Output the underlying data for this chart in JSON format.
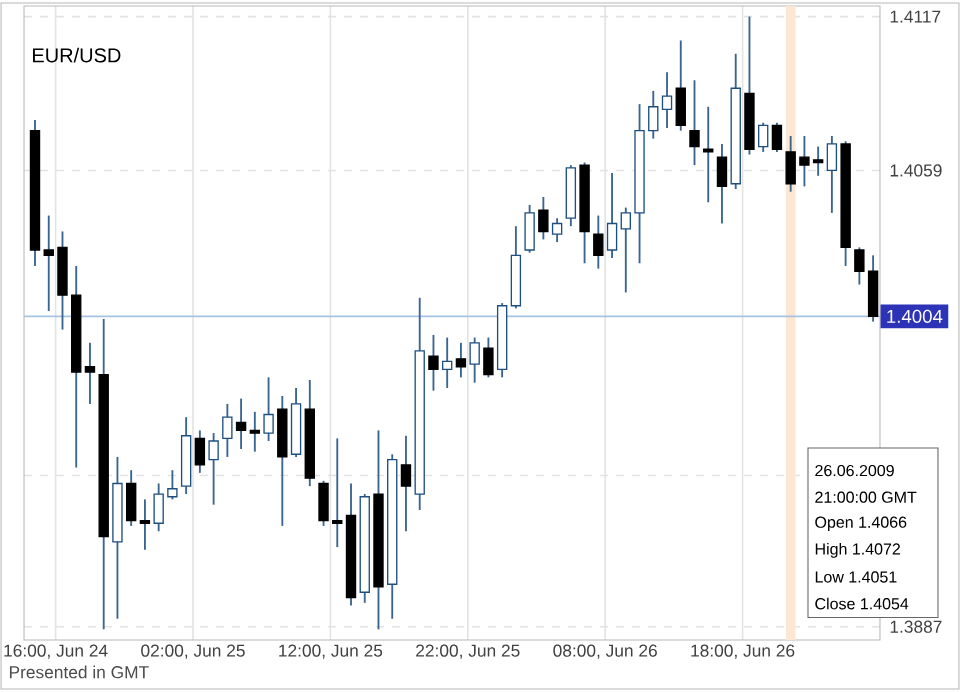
{
  "chart_data": {
    "type": "candlestick",
    "title": "EUR/USD",
    "x": [
      "2009-06-24T14:30",
      "2009-06-24T15:30",
      "2009-06-24T16:30",
      "2009-06-24T17:30",
      "2009-06-24T18:30",
      "2009-06-24T19:30",
      "2009-06-24T20:30",
      "2009-06-24T21:30",
      "2009-06-24T22:30",
      "2009-06-24T23:30",
      "2009-06-25T00:30",
      "2009-06-25T01:30",
      "2009-06-25T02:30",
      "2009-06-25T03:30",
      "2009-06-25T04:30",
      "2009-06-25T05:30",
      "2009-06-25T06:30",
      "2009-06-25T07:30",
      "2009-06-25T08:30",
      "2009-06-25T09:30",
      "2009-06-25T10:30",
      "2009-06-25T11:30",
      "2009-06-25T12:30",
      "2009-06-25T13:30",
      "2009-06-25T14:30",
      "2009-06-25T15:30",
      "2009-06-25T16:30",
      "2009-06-25T17:30",
      "2009-06-25T18:30",
      "2009-06-25T19:30",
      "2009-06-25T20:30",
      "2009-06-25T21:30",
      "2009-06-25T22:30",
      "2009-06-25T23:30",
      "2009-06-26T00:30",
      "2009-06-26T01:30",
      "2009-06-26T02:30",
      "2009-06-26T03:30",
      "2009-06-26T04:30",
      "2009-06-26T05:30",
      "2009-06-26T06:30",
      "2009-06-26T07:30",
      "2009-06-26T08:30",
      "2009-06-26T09:30",
      "2009-06-26T10:30",
      "2009-06-26T11:30",
      "2009-06-26T12:30",
      "2009-06-26T13:30",
      "2009-06-26T14:30",
      "2009-06-26T15:30",
      "2009-06-26T16:30",
      "2009-06-26T17:30",
      "2009-06-26T18:30",
      "2009-06-26T19:30",
      "2009-06-26T20:30",
      "2009-06-26T21:30",
      "2009-06-26T22:30",
      "2009-06-26T23:30",
      "2009-06-27T00:30",
      "2009-06-27T01:30",
      "2009-06-27T02:30",
      "2009-06-27T03:30"
    ],
    "ohlc": [
      [
        1.4074,
        1.4078,
        1.4023,
        1.4029
      ],
      [
        1.4029,
        1.4042,
        1.4006,
        1.4027
      ],
      [
        1.403,
        1.4036,
        1.3999,
        1.4012
      ],
      [
        1.4012,
        1.4023,
        1.3947,
        1.3983
      ],
      [
        1.3985,
        1.3994,
        1.3971,
        1.3983
      ],
      [
        1.3982,
        1.4003,
        1.3886,
        1.3921
      ],
      [
        1.3919,
        1.3951,
        1.389,
        1.3941
      ],
      [
        1.3941,
        1.3946,
        1.3925,
        1.3927
      ],
      [
        1.3927,
        1.3935,
        1.3916,
        1.3926
      ],
      [
        1.3926,
        1.3941,
        1.3923,
        1.3937
      ],
      [
        1.3936,
        1.3946,
        1.3935,
        1.3939
      ],
      [
        1.394,
        1.3966,
        1.3937,
        1.3959
      ],
      [
        1.3958,
        1.3961,
        1.3945,
        1.3948
      ],
      [
        1.395,
        1.396,
        1.3933,
        1.3957
      ],
      [
        1.3958,
        1.3971,
        1.3951,
        1.3966
      ],
      [
        1.3964,
        1.3973,
        1.3954,
        1.3961
      ],
      [
        1.3961,
        1.3968,
        1.3953,
        1.396
      ],
      [
        1.396,
        1.3981,
        1.3957,
        1.3967
      ],
      [
        1.3969,
        1.3974,
        1.3925,
        1.3951
      ],
      [
        1.3952,
        1.3977,
        1.3951,
        1.3971
      ],
      [
        1.3969,
        1.398,
        1.394,
        1.3943
      ],
      [
        1.3941,
        1.3942,
        1.3925,
        1.3927
      ],
      [
        1.3927,
        1.3958,
        1.3917,
        1.3926
      ],
      [
        1.3929,
        1.3941,
        1.3895,
        1.3898
      ],
      [
        1.39,
        1.3937,
        1.3896,
        1.3936
      ],
      [
        1.3937,
        1.3961,
        1.3886,
        1.3902
      ],
      [
        1.3903,
        1.3952,
        1.389,
        1.395
      ],
      [
        1.3948,
        1.3959,
        1.3923,
        1.394
      ],
      [
        1.3937,
        1.4011,
        1.3931,
        1.3991
      ],
      [
        1.3989,
        1.3997,
        1.3976,
        1.3984
      ],
      [
        1.3984,
        1.3996,
        1.3977,
        1.3987
      ],
      [
        1.3988,
        1.3994,
        1.3981,
        1.3985
      ],
      [
        1.3986,
        1.3996,
        1.3979,
        1.3994
      ],
      [
        1.3992,
        1.3996,
        1.3981,
        1.3982
      ],
      [
        1.3984,
        1.4009,
        1.3981,
        1.4008
      ],
      [
        1.4008,
        1.4038,
        1.4007,
        1.4027
      ],
      [
        1.4029,
        1.4046,
        1.4028,
        1.4043
      ],
      [
        1.4044,
        1.4049,
        1.4033,
        1.4036
      ],
      [
        1.4035,
        1.4041,
        1.4032,
        1.4039
      ],
      [
        1.4041,
        1.4061,
        1.4038,
        1.406
      ],
      [
        1.4061,
        1.4062,
        1.4024,
        1.4036
      ],
      [
        1.4035,
        1.4042,
        1.4022,
        1.4027
      ],
      [
        1.4029,
        1.4058,
        1.4026,
        1.4039
      ],
      [
        1.4037,
        1.4045,
        1.4013,
        1.4043
      ],
      [
        1.4043,
        1.4084,
        1.4024,
        1.4074
      ],
      [
        1.4074,
        1.4089,
        1.4071,
        1.4083
      ],
      [
        1.4082,
        1.4096,
        1.4075,
        1.4087
      ],
      [
        1.409,
        1.4108,
        1.4074,
        1.4076
      ],
      [
        1.4074,
        1.4093,
        1.4061,
        1.4068
      ],
      [
        1.4067,
        1.4083,
        1.4047,
        1.4066
      ],
      [
        1.4064,
        1.4069,
        1.4039,
        1.4053
      ],
      [
        1.4054,
        1.4103,
        1.4052,
        1.409
      ],
      [
        1.4088,
        1.4117,
        1.4065,
        1.4067
      ],
      [
        1.4068,
        1.4077,
        1.4066,
        1.4076
      ],
      [
        1.4076,
        1.4077,
        1.4066,
        1.4067
      ],
      [
        1.4066,
        1.4072,
        1.4051,
        1.4054
      ],
      [
        1.4064,
        1.4072,
        1.4053,
        1.4061
      ],
      [
        1.4063,
        1.4068,
        1.4057,
        1.4062
      ],
      [
        1.4059,
        1.4072,
        1.4043,
        1.4069
      ],
      [
        1.4069,
        1.407,
        1.4023,
        1.403
      ],
      [
        1.4029,
        1.403,
        1.4016,
        1.4021
      ],
      [
        1.4021,
        1.4027,
        1.4002,
        1.4004
      ]
    ],
    "xlim": [
      "2009-06-24T13:42",
      "2009-06-27T04:00"
    ],
    "ylim": [
      1.3882,
      1.4121
    ],
    "xticks": [
      {
        "value": "2009-06-24T16:00",
        "label": "16:00, Jun 24"
      },
      {
        "value": "2009-06-25T02:00",
        "label": "02:00, Jun 25"
      },
      {
        "value": "2009-06-25T12:00",
        "label": "12:00, Jun 25"
      },
      {
        "value": "2009-06-25T22:00",
        "label": "22:00, Jun 25"
      },
      {
        "value": "2009-06-26T08:00",
        "label": "08:00, Jun 26"
      },
      {
        "value": "2009-06-26T18:00",
        "label": "18:00, Jun 26"
      }
    ],
    "yticks": [
      1.4117,
      1.4059,
      {
        "value": 1.3944,
        "label": null
      },
      1.3887
    ],
    "grid": true,
    "ref_lines": [
      {
        "axis": "y",
        "value": 1.4004,
        "label": "1.4004",
        "color": "#a6c4e0"
      }
    ],
    "bands": [
      {
        "axis": "x",
        "from": "2009-06-26T21:09",
        "to": "2009-06-26T21:51",
        "color": "#fde6d2"
      }
    ],
    "annotations": [
      "Presented in GMT",
      "26.06.2009",
      "21:00:00 GMT",
      "Open 1.4066",
      "High 1.4072",
      "Low 1.4051",
      "Close 1.4054"
    ]
  }
}
